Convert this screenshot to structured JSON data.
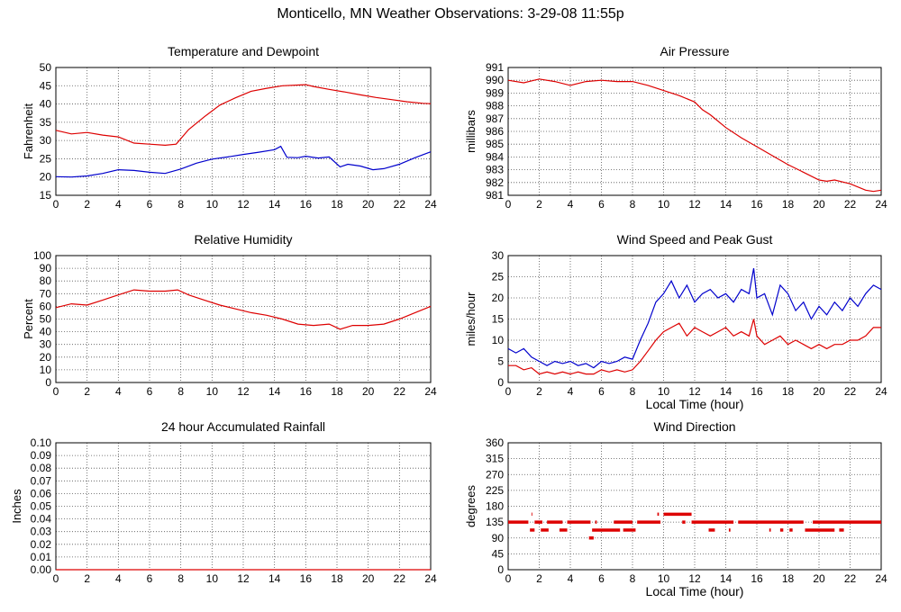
{
  "page": {
    "title": "Monticello, MN Weather Observations: 3-29-08 11:55p"
  },
  "chart_data": [
    {
      "type": "line",
      "title": "Temperature and Dewpoint",
      "xlabel": "",
      "ylabel": "Fahrenheit",
      "xlim": [
        0,
        24
      ],
      "ylim": [
        15,
        50
      ],
      "xticks": [
        0,
        2,
        4,
        6,
        8,
        10,
        12,
        14,
        16,
        18,
        20,
        22,
        24
      ],
      "yticks": [
        15,
        20,
        25,
        30,
        35,
        40,
        45,
        50
      ],
      "grid": true,
      "series": [
        {
          "color": "#dd0000",
          "x": [
            0,
            1,
            2,
            3,
            4,
            5,
            6,
            7,
            7.7,
            8.5,
            9.5,
            10.5,
            11.5,
            12.5,
            13.5,
            14.5,
            15.5,
            16,
            16.5,
            17.5,
            18.5,
            19.5,
            20.5,
            21.5,
            22.5,
            23.5,
            24
          ],
          "y": [
            32.8,
            31.8,
            32.2,
            31.5,
            31,
            29.3,
            29,
            28.7,
            29,
            33,
            36.5,
            39.7,
            41.7,
            43.5,
            44.3,
            45,
            45.2,
            45.3,
            44.8,
            44,
            43.3,
            42.5,
            41.8,
            41.2,
            40.6,
            40.2,
            40.1
          ]
        },
        {
          "color": "#0000cc",
          "x": [
            0,
            1,
            2,
            3,
            4,
            5,
            6,
            7,
            8,
            9,
            10,
            11,
            12,
            13,
            14,
            14.4,
            14.8,
            15.5,
            16,
            16.8,
            17.5,
            18.2,
            18.7,
            19.5,
            20.3,
            21,
            22,
            23,
            24
          ],
          "y": [
            20.1,
            20,
            20.3,
            21,
            22,
            21.8,
            21.3,
            21,
            22.2,
            23.8,
            24.9,
            25.5,
            26.2,
            26.8,
            27.5,
            28.4,
            25.4,
            25.3,
            25.7,
            25.2,
            25.5,
            22.8,
            23.5,
            23,
            22,
            22.3,
            23.5,
            25.3,
            26.9
          ]
        }
      ]
    },
    {
      "type": "line",
      "title": "Air Pressure",
      "xlabel": "",
      "ylabel": "millibars",
      "xlim": [
        0,
        24
      ],
      "ylim": [
        981,
        991
      ],
      "xticks": [
        0,
        2,
        4,
        6,
        8,
        10,
        12,
        14,
        16,
        18,
        20,
        22,
        24
      ],
      "yticks": [
        981,
        982,
        983,
        984,
        985,
        986,
        987,
        988,
        989,
        990,
        991
      ],
      "grid": true,
      "series": [
        {
          "color": "#dd0000",
          "x": [
            0,
            1,
            2,
            3,
            4,
            5,
            6,
            7,
            8,
            9,
            10,
            11,
            12,
            12.5,
            13,
            14,
            15,
            16,
            17,
            18,
            19,
            20,
            20.5,
            21,
            22,
            23,
            23.5,
            24
          ],
          "y": [
            990,
            989.8,
            990.1,
            989.9,
            989.6,
            989.9,
            990,
            989.9,
            989.9,
            989.6,
            989.2,
            988.8,
            988.3,
            987.7,
            987.3,
            986.3,
            985.5,
            984.8,
            984.1,
            983.4,
            982.8,
            982.2,
            982.1,
            982.2,
            981.9,
            981.4,
            981.3,
            981.4
          ]
        }
      ]
    },
    {
      "type": "line",
      "title": "Relative Humidity",
      "xlabel": "",
      "ylabel": "Percent",
      "xlim": [
        0,
        24
      ],
      "ylim": [
        0,
        100
      ],
      "xticks": [
        0,
        2,
        4,
        6,
        8,
        10,
        12,
        14,
        16,
        18,
        20,
        22,
        24
      ],
      "yticks": [
        0,
        10,
        20,
        30,
        40,
        50,
        60,
        70,
        80,
        90,
        100
      ],
      "grid": true,
      "series": [
        {
          "color": "#dd0000",
          "x": [
            0,
            1,
            2,
            3,
            4,
            5,
            6,
            7,
            7.8,
            8.5,
            9.5,
            10.5,
            11.5,
            12.5,
            13.5,
            14.5,
            15.5,
            16.5,
            17.5,
            18.2,
            19,
            20,
            21,
            22,
            23,
            24
          ],
          "y": [
            59,
            62,
            61,
            65,
            69,
            73,
            72,
            72,
            73,
            69,
            65,
            61,
            58,
            55,
            53,
            50,
            46,
            45,
            46,
            42,
            45,
            45,
            46,
            50,
            55,
            60
          ]
        }
      ]
    },
    {
      "type": "line",
      "title": "Wind Speed and Peak Gust",
      "xlabel": "Local Time (hour)",
      "ylabel": "miles/hour",
      "xlim": [
        0,
        24
      ],
      "ylim": [
        0,
        30
      ],
      "xticks": [
        0,
        2,
        4,
        6,
        8,
        10,
        12,
        14,
        16,
        18,
        20,
        22,
        24
      ],
      "yticks": [
        0,
        5,
        10,
        15,
        20,
        25,
        30
      ],
      "grid": true,
      "series": [
        {
          "color": "#0000cc",
          "x": [
            0,
            0.5,
            1,
            1.5,
            2,
            2.5,
            3,
            3.5,
            4,
            4.5,
            5,
            5.5,
            6,
            6.5,
            7,
            7.5,
            8,
            8.5,
            9,
            9.5,
            10,
            10.5,
            11,
            11.5,
            12,
            12.5,
            13,
            13.5,
            14,
            14.5,
            15,
            15.5,
            15.8,
            16,
            16.5,
            17,
            17.5,
            18,
            18.5,
            19,
            19.5,
            20,
            20.5,
            21,
            21.5,
            22,
            22.5,
            23,
            23.5,
            24
          ],
          "y": [
            8,
            7,
            8,
            6,
            5,
            4,
            5,
            4.5,
            5,
            4,
            4.5,
            3.5,
            5,
            4.5,
            5,
            6,
            5.5,
            10,
            14,
            19,
            21,
            24,
            20,
            23,
            19,
            21,
            22,
            20,
            21,
            19,
            22,
            21,
            27,
            20,
            21,
            16,
            23,
            21,
            17,
            19,
            15,
            18,
            16,
            19,
            17,
            20,
            18,
            21,
            23,
            22
          ]
        },
        {
          "color": "#dd0000",
          "x": [
            0,
            0.5,
            1,
            1.5,
            2,
            2.5,
            3,
            3.5,
            4,
            4.5,
            5,
            5.5,
            6,
            6.5,
            7,
            7.5,
            8,
            8.5,
            9,
            9.5,
            10,
            10.5,
            11,
            11.5,
            12,
            12.5,
            13,
            13.5,
            14,
            14.5,
            15,
            15.5,
            15.8,
            16,
            16.5,
            17,
            17.5,
            18,
            18.5,
            19,
            19.5,
            20,
            20.5,
            21,
            21.5,
            22,
            22.5,
            23,
            23.5,
            24
          ],
          "y": [
            4,
            4,
            3,
            3.5,
            2,
            2.5,
            2,
            2.5,
            2,
            2.5,
            2,
            2,
            3,
            2.5,
            3,
            2.5,
            3,
            5,
            7.5,
            10,
            12,
            13,
            14,
            11,
            13,
            12,
            11,
            12,
            13,
            11,
            12,
            11,
            15,
            11,
            9,
            10,
            11,
            9,
            10,
            9,
            8,
            9,
            8,
            9,
            9,
            10,
            10,
            11,
            13,
            13
          ]
        }
      ]
    },
    {
      "type": "line",
      "title": "24 hour Accumulated Rainfall",
      "xlabel": "",
      "ylabel": "Inches",
      "xlim": [
        0,
        24
      ],
      "ylim": [
        0,
        0.1
      ],
      "xticks": [
        0,
        2,
        4,
        6,
        8,
        10,
        12,
        14,
        16,
        18,
        20,
        22,
        24
      ],
      "yticks": [
        "0.00",
        "0.01",
        "0.02",
        "0.03",
        "0.04",
        "0.05",
        "0.06",
        "0.07",
        "0.08",
        "0.09",
        "0.10"
      ],
      "grid": true,
      "series": [
        {
          "color": "#dd0000",
          "x": [
            0,
            24
          ],
          "y": [
            0,
            0
          ]
        }
      ]
    },
    {
      "type": "scatter",
      "title": "Wind Direction",
      "xlabel": "Local Time (hour)",
      "ylabel": "degrees",
      "xlim": [
        0,
        24
      ],
      "ylim": [
        0,
        360
      ],
      "xticks": [
        0,
        2,
        4,
        6,
        8,
        10,
        12,
        14,
        16,
        18,
        20,
        22,
        24
      ],
      "yticks": [
        0,
        45,
        90,
        135,
        180,
        225,
        270,
        315,
        360
      ],
      "grid": true,
      "series": [
        {
          "color": "#dd0000",
          "runs": [
            {
              "y": 135,
              "from": 0,
              "to": 1.3
            },
            {
              "y": 135,
              "from": 1.7,
              "to": 2.2
            },
            {
              "y": 135,
              "from": 2.5,
              "to": 3.5
            },
            {
              "y": 135,
              "from": 3.8,
              "to": 5.3
            },
            {
              "y": 135,
              "from": 5.6,
              "to": 5.7
            },
            {
              "y": 135,
              "from": 6.8,
              "to": 8
            },
            {
              "y": 135,
              "from": 8.3,
              "to": 9.8
            },
            {
              "y": 135,
              "from": 11.2,
              "to": 11.4
            },
            {
              "y": 135,
              "from": 11.8,
              "to": 14.5
            },
            {
              "y": 135,
              "from": 14.8,
              "to": 19
            },
            {
              "y": 135,
              "from": 19.6,
              "to": 24
            },
            {
              "y": 112.5,
              "from": 1.4,
              "to": 1.7
            },
            {
              "y": 112.5,
              "from": 2.1,
              "to": 2.6
            },
            {
              "y": 112.5,
              "from": 3.3,
              "to": 3.8
            },
            {
              "y": 112.5,
              "from": 5.4,
              "to": 7.2
            },
            {
              "y": 112.5,
              "from": 7.4,
              "to": 8.2
            },
            {
              "y": 112.5,
              "from": 12.9,
              "to": 13.3
            },
            {
              "y": 112.5,
              "from": 14.2,
              "to": 14.3
            },
            {
              "y": 112.5,
              "from": 16.8,
              "to": 16.9
            },
            {
              "y": 112.5,
              "from": 17.5,
              "to": 17.7
            },
            {
              "y": 112.5,
              "from": 18.1,
              "to": 18.3
            },
            {
              "y": 112.5,
              "from": 19.1,
              "to": 21
            },
            {
              "y": 112.5,
              "from": 21.3,
              "to": 21.6
            },
            {
              "y": 157.5,
              "from": 1.5,
              "to": 1.55
            },
            {
              "y": 157.5,
              "from": 9.6,
              "to": 9.7
            },
            {
              "y": 157.5,
              "from": 10,
              "to": 11.8
            },
            {
              "y": 90,
              "from": 5.2,
              "to": 5.5
            }
          ]
        }
      ]
    }
  ]
}
